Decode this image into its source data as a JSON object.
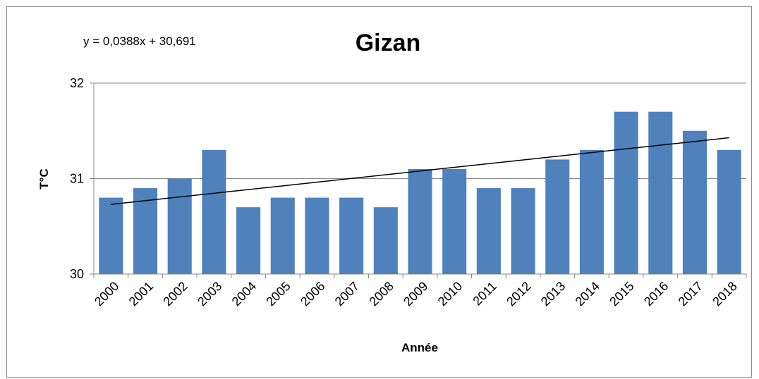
{
  "chart_data": {
    "type": "bar",
    "title": "Gizan",
    "annotation": "y = 0,0388x + 30,691",
    "x_label": "Année",
    "y_label": "T°C",
    "categories": [
      "2000",
      "2001",
      "2002",
      "2003",
      "2004",
      "2005",
      "2006",
      "2007",
      "2008",
      "2009",
      "2010",
      "2011",
      "2012",
      "2013",
      "2014",
      "2015",
      "2016",
      "2017",
      "2018"
    ],
    "values": [
      30.8,
      30.9,
      31.0,
      31.3,
      30.7,
      30.8,
      30.8,
      30.8,
      30.7,
      31.1,
      31.1,
      30.9,
      30.9,
      31.2,
      31.3,
      31.7,
      31.7,
      31.5,
      31.3
    ],
    "color": "#4f81bd",
    "ylim": [
      30,
      32
    ],
    "yticks": [
      30,
      31,
      32
    ],
    "grid": true,
    "trendline": "linear"
  }
}
